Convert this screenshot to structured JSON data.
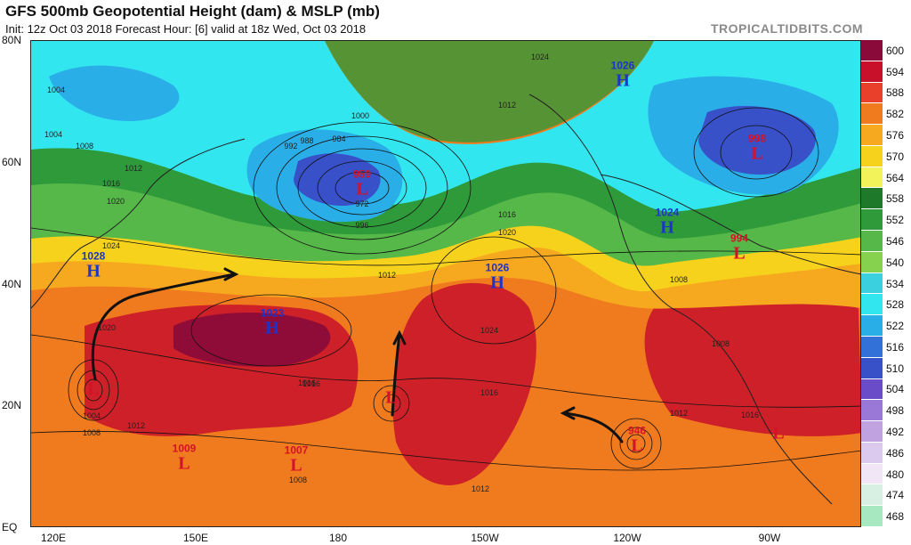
{
  "header": {
    "title": "GFS 500mb Geopotential Height (dam) & MSLP (mb)",
    "subtitle": "Init: 12z Oct 03 2018   Forecast Hour: [6]   valid at 18z Wed, Oct 03 2018",
    "brand": "TROPICALTIDBITS.COM"
  },
  "axes": {
    "y_labels": [
      "80N",
      "60N",
      "40N",
      "20N",
      "EQ"
    ],
    "x_labels": [
      "120E",
      "150E",
      "180",
      "150W",
      "120W",
      "90W"
    ]
  },
  "colorbar": {
    "labels": [
      "600",
      "594",
      "588",
      "582",
      "576",
      "570",
      "564",
      "558",
      "552",
      "546",
      "540",
      "534",
      "528",
      "522",
      "516",
      "510",
      "504",
      "498",
      "492",
      "486",
      "480",
      "474",
      "468"
    ],
    "colors": [
      "#8a0a3a",
      "#c8102a",
      "#e8402a",
      "#f07a1e",
      "#f6a81e",
      "#f7d21c",
      "#f2f25a",
      "#1e7a2a",
      "#2f9a3a",
      "#56b848",
      "#86d24e",
      "#3ad0e0",
      "#32e6ef",
      "#2aaee8",
      "#3272d8",
      "#3850c8",
      "#6a4cc8",
      "#9a78d8",
      "#c0a2e0",
      "#dccaee",
      "#f0e6f6",
      "#d8f0e4",
      "#a8e8c0"
    ]
  },
  "pressure_centers": [
    {
      "type": "L",
      "value": "",
      "color": "#d4122a"
    },
    {
      "type": "H",
      "value": "1028",
      "color": "#1a35c9"
    },
    {
      "type": "H",
      "value": "1023",
      "color": "#1a35c9"
    },
    {
      "type": "L",
      "value": "959",
      "color": "#d4122a"
    },
    {
      "type": "L",
      "value": "1009",
      "color": "#d4122a"
    },
    {
      "type": "L",
      "value": "1007",
      "color": "#d4122a"
    },
    {
      "type": "L",
      "value": "",
      "color": "#d4122a"
    },
    {
      "type": "H",
      "value": "1026",
      "color": "#1a35c9"
    },
    {
      "type": "H",
      "value": "1026",
      "color": "#1a35c9"
    },
    {
      "type": "H",
      "value": "1024",
      "color": "#1a35c9"
    },
    {
      "type": "L",
      "value": "998",
      "color": "#d4122a"
    },
    {
      "type": "L",
      "value": "994",
      "color": "#d4122a"
    },
    {
      "type": "L",
      "value": "946",
      "color": "#d4122a"
    },
    {
      "type": "L",
      "value": "",
      "color": "#d4122a"
    }
  ],
  "isobar_labels": [
    "1004",
    "1008",
    "1012",
    "1016",
    "1020",
    "1024",
    "1000",
    "992",
    "988",
    "984",
    "996",
    "972",
    "1012",
    "1016",
    "1020",
    "1024",
    "1008",
    "1012",
    "1016",
    "1004",
    "1008",
    "1012",
    "1016",
    "1020",
    "1016",
    "1004",
    "1008",
    "1012",
    "1016",
    "1012",
    "1008",
    "1024"
  ]
}
